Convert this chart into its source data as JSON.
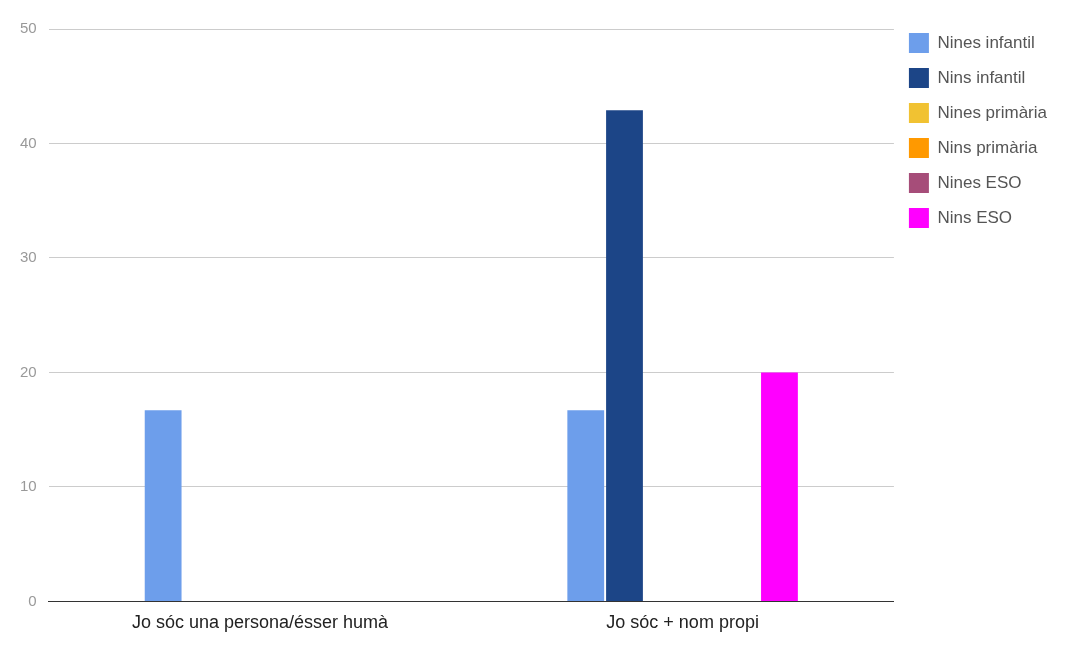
{
  "chart_data": {
    "type": "bar",
    "categories": [
      "Jo sóc una persona/ésser humà",
      "Jo sóc + nom propi"
    ],
    "series": [
      {
        "name": "Nines infantil",
        "color": "#6d9eeb",
        "values": [
          16.7,
          16.7
        ]
      },
      {
        "name": "Nins infantil",
        "color": "#1c4587",
        "values": [
          0,
          42.9
        ]
      },
      {
        "name": "Nines primària",
        "color": "#f1c232",
        "values": [
          0,
          0
        ]
      },
      {
        "name": "Nins primària",
        "color": "#ff9900",
        "values": [
          0,
          0
        ]
      },
      {
        "name": "Nines ESO",
        "color": "#a64d79",
        "values": [
          0,
          0
        ]
      },
      {
        "name": "Nins ESO",
        "color": "#ff00ff",
        "values": [
          0,
          20
        ]
      }
    ],
    "ylim": [
      0,
      50
    ],
    "yticks": [
      0,
      10,
      20,
      30,
      40,
      50
    ],
    "grid": "y",
    "legend": "top right"
  }
}
